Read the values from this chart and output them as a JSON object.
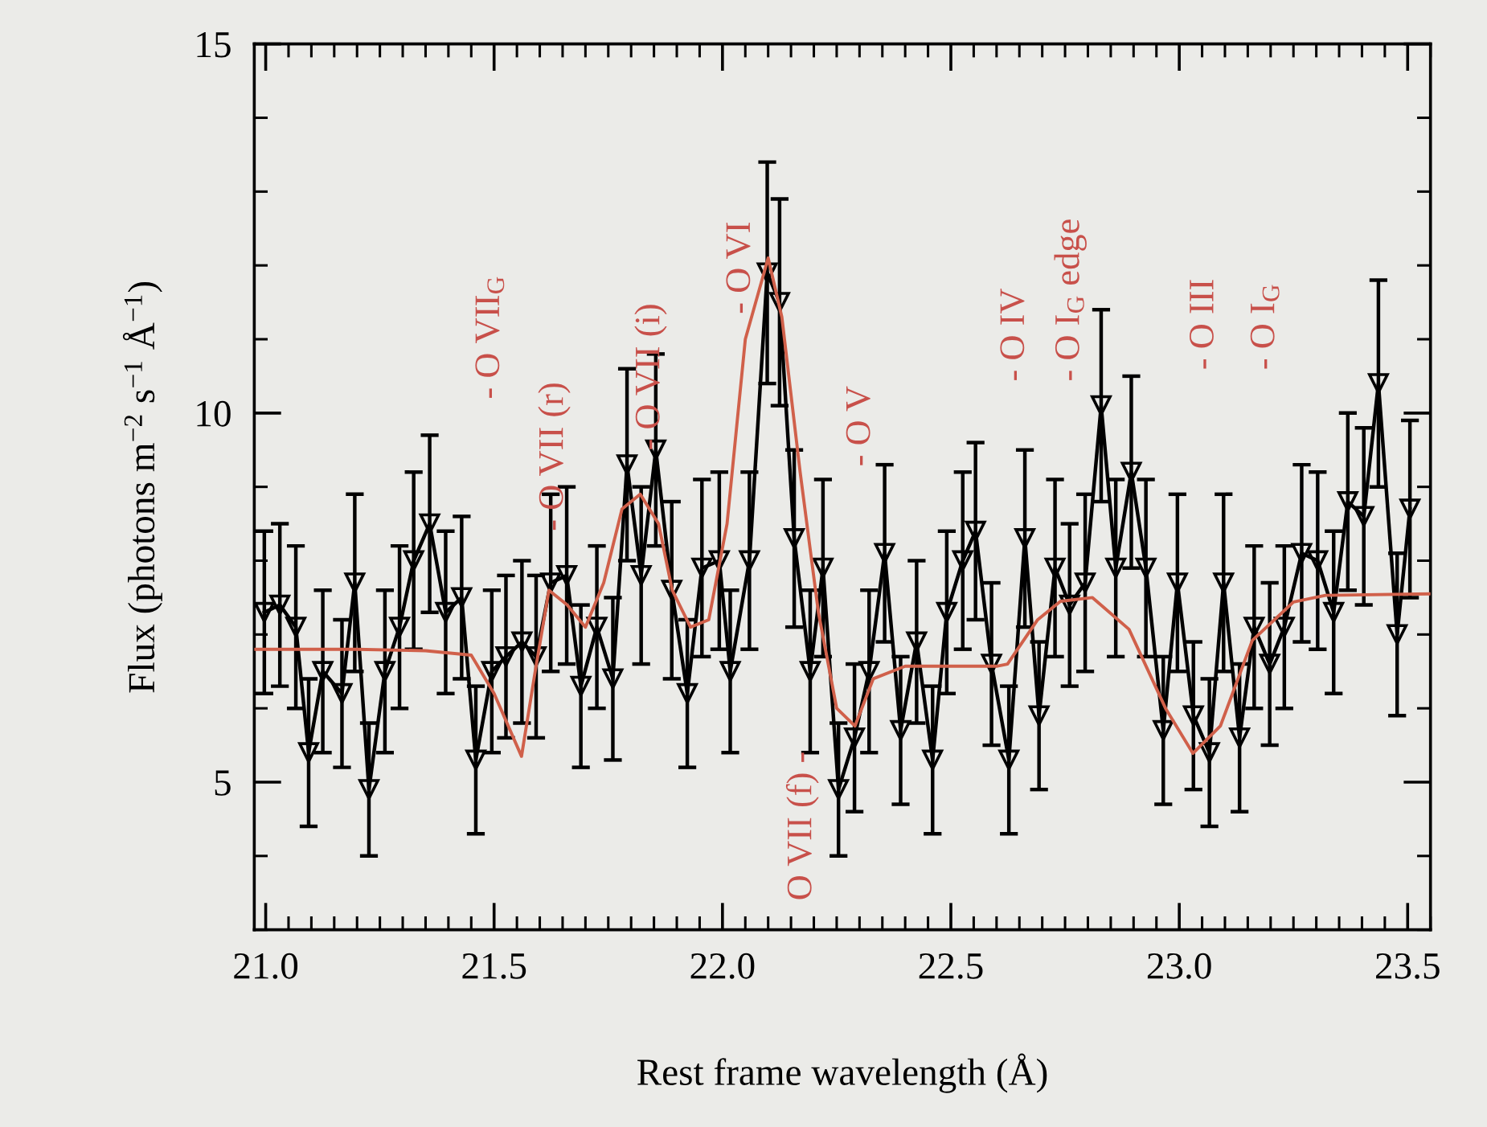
{
  "chart_data": {
    "type": "line",
    "xlabel": "Rest frame wavelength (Å)",
    "ylabel": "Flux (photons m$^{−2}$ s$^{−1}$ Å$^{−1}$)",
    "xlim": [
      20.975,
      23.55
    ],
    "ylim": [
      3,
      15
    ],
    "xticks": [
      {
        "value": 21,
        "label": "21.0"
      },
      {
        "value": 21.5,
        "label": "21.5"
      },
      {
        "value": 22,
        "label": "22.0"
      },
      {
        "value": 22.5,
        "label": "22.5"
      },
      {
        "value": 23,
        "label": "23.0"
      },
      {
        "value": 23.5,
        "label": "23.5"
      }
    ],
    "yticks": [
      5,
      10,
      15
    ],
    "grid": false,
    "legend": false,
    "series": [
      {
        "color": "#000000",
        "marker": "triangle",
        "line_style": "solid",
        "x": [
          20.997,
          21.031,
          21.066,
          21.094,
          21.125,
          21.167,
          21.195,
          21.226,
          21.261,
          21.293,
          21.324,
          21.359,
          21.394,
          21.429,
          21.46,
          21.495,
          21.526,
          21.561,
          21.592,
          21.624,
          21.659,
          21.69,
          21.725,
          21.76,
          21.791,
          21.822,
          21.854,
          21.889,
          21.923,
          21.955,
          21.993,
          22.017,
          22.059,
          22.098,
          22.125,
          22.157,
          22.192,
          22.22,
          22.254,
          22.289,
          22.321,
          22.355,
          22.39,
          22.425,
          22.46,
          22.491,
          22.526,
          22.554,
          22.589,
          22.627,
          22.662,
          22.693,
          22.728,
          22.76,
          22.794,
          22.829,
          22.861,
          22.895,
          22.927,
          22.965,
          22.996,
          23.031,
          23.066,
          23.097,
          23.132,
          23.164,
          23.198,
          23.23,
          23.268,
          23.303,
          23.338,
          23.369,
          23.404,
          23.436,
          23.477,
          23.505
        ],
        "values": [
          7.3,
          7.4,
          7.1,
          5.4,
          6.5,
          6.2,
          7.7,
          4.9,
          6.5,
          7.1,
          8.0,
          8.5,
          7.3,
          7.5,
          5.3,
          6.5,
          6.7,
          6.9,
          6.7,
          7.7,
          7.8,
          6.3,
          7.1,
          6.4,
          9.3,
          7.8,
          9.5,
          7.6,
          6.2,
          7.9,
          8.0,
          6.5,
          8.0,
          11.9,
          11.5,
          8.3,
          6.5,
          7.9,
          4.9,
          5.6,
          6.5,
          8.1,
          5.7,
          6.9,
          5.3,
          7.3,
          8.0,
          8.4,
          6.6,
          5.3,
          8.3,
          5.9,
          7.9,
          7.4,
          7.7,
          10.1,
          7.9,
          9.2,
          7.9,
          5.7,
          7.7,
          5.9,
          5.4,
          7.7,
          5.6,
          7.1,
          6.6,
          7.1,
          8.1,
          8.0,
          7.3,
          8.8,
          8.6,
          10.4,
          7.0,
          8.7
        ],
        "errors": [
          1.1,
          1.1,
          1.1,
          1.0,
          1.1,
          1.0,
          1.2,
          0.9,
          1.1,
          1.1,
          1.2,
          1.2,
          1.1,
          1.1,
          1.0,
          1.1,
          1.1,
          1.1,
          1.1,
          1.2,
          1.2,
          1.1,
          1.1,
          1.1,
          1.3,
          1.2,
          1.3,
          1.2,
          1.0,
          1.2,
          1.2,
          1.1,
          1.2,
          1.5,
          1.4,
          1.2,
          1.1,
          1.2,
          0.9,
          1.0,
          1.1,
          1.2,
          1.0,
          1.1,
          1.0,
          1.1,
          1.2,
          1.2,
          1.1,
          1.0,
          1.2,
          1.0,
          1.2,
          1.1,
          1.2,
          1.3,
          1.2,
          1.3,
          1.2,
          1.0,
          1.2,
          1.0,
          1.0,
          1.2,
          1.0,
          1.1,
          1.1,
          1.1,
          1.2,
          1.2,
          1.1,
          1.2,
          1.2,
          1.4,
          1.1,
          1.2
        ]
      },
      {
        "color": "#d0604a",
        "marker": "none",
        "line_style": "solid",
        "x": [
          20.975,
          21.2,
          21.35,
          21.45,
          21.5,
          21.56,
          21.59,
          21.62,
          21.66,
          21.7,
          21.74,
          21.78,
          21.82,
          21.86,
          21.89,
          21.93,
          21.97,
          22.01,
          22.05,
          22.1,
          22.13,
          22.17,
          22.21,
          22.25,
          22.29,
          22.33,
          22.4,
          22.6,
          22.624,
          22.69,
          22.74,
          22.81,
          22.89,
          22.97,
          23.03,
          23.09,
          23.16,
          23.25,
          23.32,
          23.55
        ],
        "values": [
          6.8,
          6.8,
          6.78,
          6.72,
          6.2,
          5.35,
          6.5,
          7.6,
          7.4,
          7.1,
          7.7,
          8.7,
          8.9,
          8.5,
          7.6,
          7.1,
          7.2,
          8.5,
          11.0,
          12.1,
          11.3,
          9.2,
          7.3,
          6.0,
          5.76,
          6.4,
          6.57,
          6.57,
          6.6,
          7.2,
          7.45,
          7.5,
          7.07,
          6.0,
          5.39,
          5.76,
          6.92,
          7.44,
          7.53,
          7.55
        ]
      }
    ],
    "annotations": [
      "- O VII$_{G}$",
      "- O VII (r)",
      "- O VII (i)",
      "- O VI",
      "O VII (f) -",
      "- O V",
      "- O IV",
      "- O I$_{G}$ edge",
      "- O III",
      "- O I$_{G}$"
    ]
  }
}
